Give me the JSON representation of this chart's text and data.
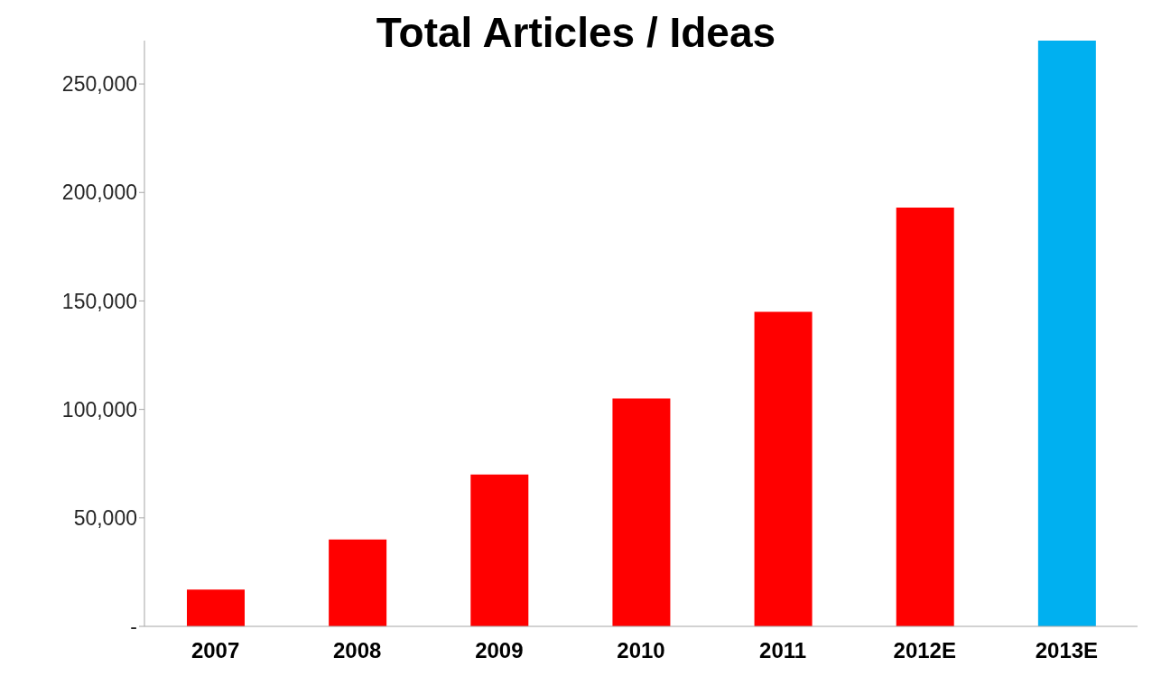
{
  "chart_data": {
    "type": "bar",
    "title": "Total Articles / Ideas",
    "categories": [
      "2007",
      "2008",
      "2009",
      "2010",
      "2011",
      "2012E",
      "2013E"
    ],
    "values": [
      17000,
      40000,
      70000,
      105000,
      145000,
      193000,
      270000
    ],
    "colors": [
      "#ff0000",
      "#ff0000",
      "#ff0000",
      "#ff0000",
      "#ff0000",
      "#ff0000",
      "#00b0f0"
    ],
    "ylim": [
      0,
      270000
    ],
    "yticks": [
      {
        "value": 0,
        "label": "-"
      },
      {
        "value": 50000,
        "label": "50,000"
      },
      {
        "value": 100000,
        "label": "100,000"
      },
      {
        "value": 150000,
        "label": "150,000"
      },
      {
        "value": 200000,
        "label": "200,000"
      },
      {
        "value": 250000,
        "label": "250,000"
      }
    ],
    "grid": false,
    "legend": false
  }
}
